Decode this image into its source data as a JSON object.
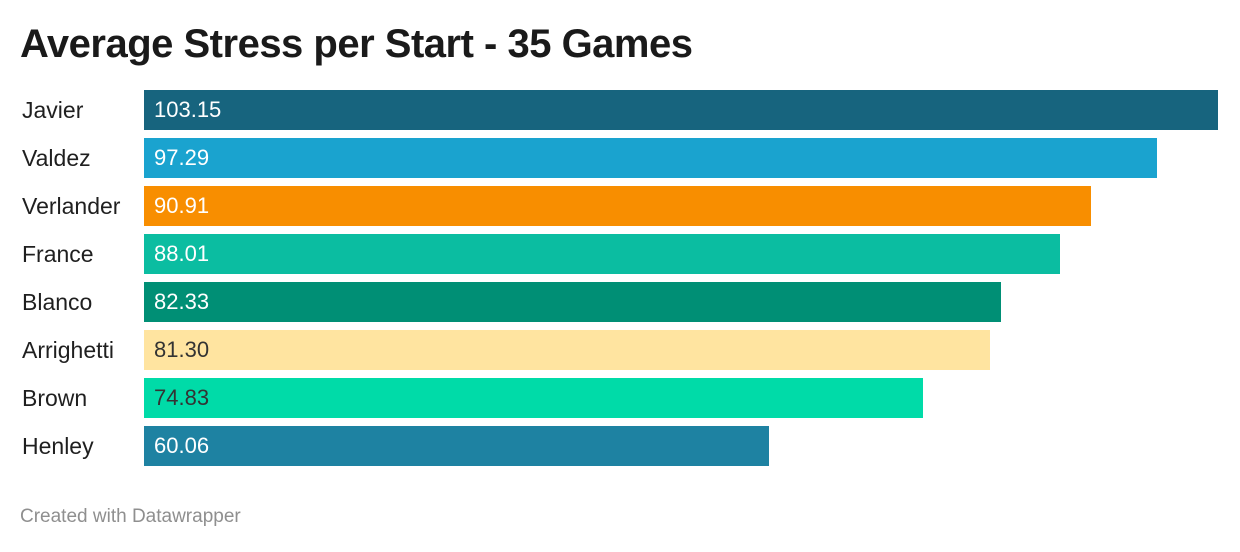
{
  "chart_data": {
    "type": "bar",
    "orientation": "horizontal",
    "title": "Average Stress per Start - 35 Games",
    "categories": [
      "Javier",
      "Valdez",
      "Verlander",
      "France",
      "Blanco",
      "Arrighetti",
      "Brown",
      "Henley"
    ],
    "values": [
      103.15,
      97.29,
      90.91,
      88.01,
      82.33,
      81.3,
      74.83,
      60.06
    ],
    "value_labels": [
      "103.15",
      "97.29",
      "90.91",
      "88.01",
      "82.33",
      "81.30",
      "74.83",
      "60.06"
    ],
    "colors": [
      "#17647e",
      "#1aa3cf",
      "#f88e00",
      "#0bbda1",
      "#008f75",
      "#ffe4a0",
      "#00dba8",
      "#1e82a2"
    ],
    "label_colors": [
      "#ffffff",
      "#ffffff",
      "#ffffff",
      "#ffffff",
      "#ffffff",
      "#333333",
      "#333333",
      "#ffffff"
    ],
    "xlim": [
      0,
      103.15
    ],
    "grid": false,
    "legend": "none"
  },
  "footer": {
    "credit": "Created with Datawrapper"
  }
}
